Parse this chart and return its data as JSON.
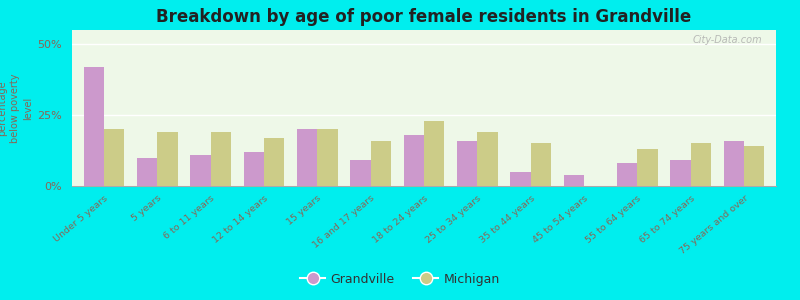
{
  "title": "Breakdown by age of poor female residents in Grandville",
  "categories": [
    "Under 5 years",
    "5 years",
    "6 to 11 years",
    "12 to 14 years",
    "15 years",
    "16 and 17 years",
    "18 to 24 years",
    "25 to 34 years",
    "35 to 44 years",
    "45 to 54 years",
    "55 to 64 years",
    "65 to 74 years",
    "75 years and over"
  ],
  "grandville": [
    42.0,
    10.0,
    11.0,
    12.0,
    20.0,
    9.0,
    18.0,
    16.0,
    5.0,
    4.0,
    8.0,
    9.0,
    16.0
  ],
  "michigan": [
    20.0,
    19.0,
    19.0,
    17.0,
    20.0,
    16.0,
    23.0,
    19.0,
    15.0,
    0.0,
    13.0,
    15.0,
    14.0
  ],
  "grandville_color": "#cc99cc",
  "michigan_color": "#cccc88",
  "ylabel": "percentage\nbelow poverty\nlevel",
  "ylim": [
    0,
    55
  ],
  "yticks": [
    0,
    25,
    50
  ],
  "ytick_labels": [
    "0%",
    "25%",
    "50%"
  ],
  "plot_bg_color": "#eef8e8",
  "outer_background": "#00eeee",
  "title_fontsize": 12,
  "watermark": "City-Data.com",
  "label_color": "#886655",
  "bar_width": 0.38
}
